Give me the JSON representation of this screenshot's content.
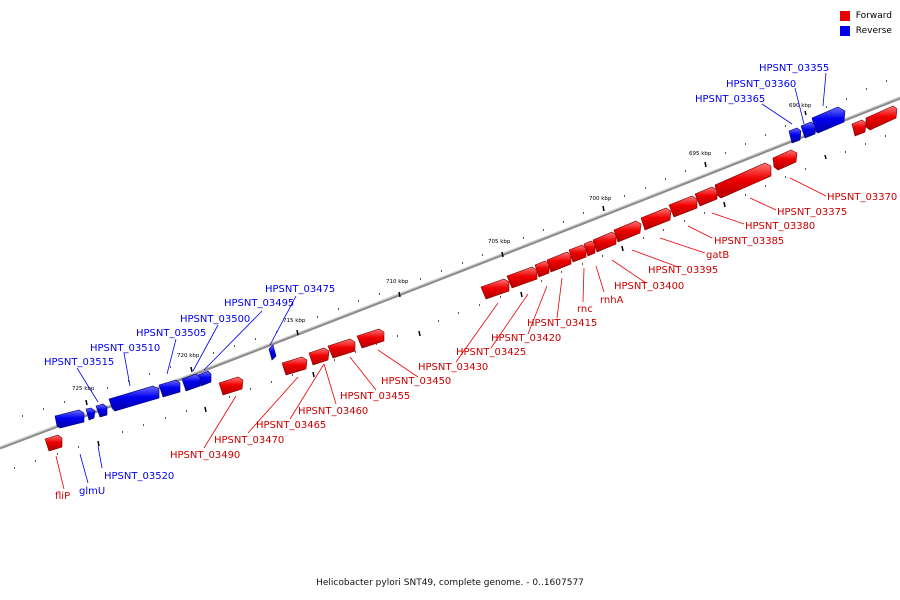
{
  "legend": {
    "forward": {
      "label": "Forward",
      "color": "#ee0000"
    },
    "reverse": {
      "label": "Reverse",
      "color": "#0000ee"
    }
  },
  "caption": "Helicobacter pylori SNT49, complete genome. - 0..1607577",
  "ticks": [
    "690 kbp",
    "695 kbp",
    "700 kbp",
    "705 kbp",
    "710 kbp",
    "715 kbp",
    "720 kbp",
    "725 kbp"
  ],
  "genes_reverse": [
    "HPSNT_03355",
    "HPSNT_03360",
    "HPSNT_03365",
    "HPSNT_03475",
    "HPSNT_03495",
    "HPSNT_03500",
    "HPSNT_03505",
    "HPSNT_03510",
    "HPSNT_03515",
    "HPSNT_03520",
    "glmU"
  ],
  "genes_forward": [
    "HPSNT_03370",
    "HPSNT_03375",
    "HPSNT_03380",
    "HPSNT_03385",
    "gatB",
    "HPSNT_03395",
    "HPSNT_03400",
    "rnhA",
    "rnc",
    "HPSNT_03415",
    "HPSNT_03420",
    "HPSNT_03425",
    "HPSNT_03430",
    "HPSNT_03450",
    "HPSNT_03455",
    "HPSNT_03460",
    "HPSNT_03465",
    "HPSNT_03470",
    "HPSNT_03490",
    "fliP"
  ]
}
